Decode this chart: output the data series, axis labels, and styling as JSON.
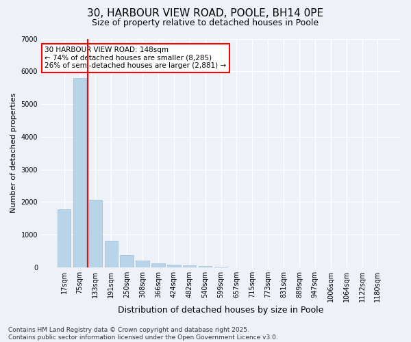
{
  "title_line1": "30, HARBOUR VIEW ROAD, POOLE, BH14 0PE",
  "title_line2": "Size of property relative to detached houses in Poole",
  "xlabel": "Distribution of detached houses by size in Poole",
  "ylabel": "Number of detached properties",
  "categories": [
    "17sqm",
    "75sqm",
    "133sqm",
    "191sqm",
    "250sqm",
    "308sqm",
    "366sqm",
    "424sqm",
    "482sqm",
    "540sqm",
    "599sqm",
    "657sqm",
    "715sqm",
    "773sqm",
    "831sqm",
    "889sqm",
    "947sqm",
    "1006sqm",
    "1064sqm",
    "1122sqm",
    "1180sqm"
  ],
  "values": [
    1780,
    5800,
    2080,
    820,
    370,
    215,
    120,
    90,
    65,
    40,
    15,
    0,
    0,
    0,
    0,
    0,
    0,
    0,
    0,
    0,
    0
  ],
  "bar_color": "#b8d4e8",
  "bar_edge_color": "#9bbdd4",
  "vline_x_pos": 1.5,
  "vline_color": "red",
  "annotation_text": "30 HARBOUR VIEW ROAD: 148sqm\n← 74% of detached houses are smaller (8,285)\n26% of semi-detached houses are larger (2,881) →",
  "annotation_box_color": "white",
  "annotation_box_edge_color": "red",
  "ylim": [
    0,
    7000
  ],
  "yticks": [
    0,
    1000,
    2000,
    3000,
    4000,
    5000,
    6000,
    7000
  ],
  "background_color": "#eef1f8",
  "plot_bg_color": "#eef1f8",
  "grid_color": "white",
  "footer_line1": "Contains HM Land Registry data © Crown copyright and database right 2025.",
  "footer_line2": "Contains public sector information licensed under the Open Government Licence v3.0.",
  "title_fontsize": 11,
  "subtitle_fontsize": 9,
  "ylabel_fontsize": 8,
  "xlabel_fontsize": 9,
  "tick_fontsize": 7,
  "annotation_fontsize": 7.5,
  "footer_fontsize": 6.5
}
